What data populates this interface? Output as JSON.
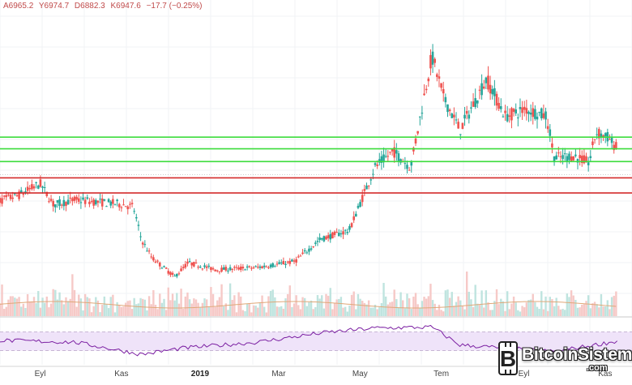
{
  "ohlc": {
    "open": "A6965.2",
    "high": "Y6974.7",
    "low": "D6882.3",
    "close": "K6947.6",
    "change": "−17.7 (−0.25%)"
  },
  "colors": {
    "up": "#26a69a",
    "down": "#ef5350",
    "support": "#3ddc3d",
    "resistance": "#d42b2b",
    "rsi_line": "#7b1fa2",
    "rsi_band": "#efe3f9",
    "volume_ma": "#e0a878"
  },
  "watermark": {
    "brand": "BitcoinSistemi",
    "tld": ".com",
    "icon": "bitcoin-b-icon"
  },
  "chart_data": {
    "type": "candlestick",
    "title": "",
    "x_ticks": [
      "Eyl",
      "Kas",
      "2019",
      "Mar",
      "May",
      "Tem",
      "Eyl",
      "Kas"
    ],
    "x_range": [
      "2018-08",
      "2019-11"
    ],
    "y_range": [
      3000,
      14500
    ],
    "horizontal_lines": {
      "green": [
        9300,
        8800,
        8250
      ],
      "red": [
        7550,
        6900
      ]
    },
    "price_path": [
      {
        "date": "2018-08-01",
        "price": 6500
      },
      {
        "date": "2018-08-20",
        "price": 6800
      },
      {
        "date": "2018-09-05",
        "price": 7300
      },
      {
        "date": "2018-09-15",
        "price": 6400
      },
      {
        "date": "2018-10-01",
        "price": 6600
      },
      {
        "date": "2018-10-20",
        "price": 6500
      },
      {
        "date": "2018-11-01",
        "price": 6450
      },
      {
        "date": "2018-11-14",
        "price": 6300
      },
      {
        "date": "2018-11-20",
        "price": 4900
      },
      {
        "date": "2018-11-28",
        "price": 4100
      },
      {
        "date": "2018-12-15",
        "price": 3300
      },
      {
        "date": "2018-12-25",
        "price": 3900
      },
      {
        "date": "2019-01-15",
        "price": 3600
      },
      {
        "date": "2019-02-15",
        "price": 3700
      },
      {
        "date": "2019-03-15",
        "price": 3950
      },
      {
        "date": "2019-04-03",
        "price": 4900
      },
      {
        "date": "2019-04-25",
        "price": 5300
      },
      {
        "date": "2019-05-14",
        "price": 8000
      },
      {
        "date": "2019-05-28",
        "price": 8700
      },
      {
        "date": "2019-06-10",
        "price": 8000
      },
      {
        "date": "2019-06-26",
        "price": 12800
      },
      {
        "date": "2019-07-05",
        "price": 11000
      },
      {
        "date": "2019-07-17",
        "price": 9600
      },
      {
        "date": "2019-08-06",
        "price": 11800
      },
      {
        "date": "2019-08-20",
        "price": 10200
      },
      {
        "date": "2019-09-05",
        "price": 10500
      },
      {
        "date": "2019-09-20",
        "price": 10200
      },
      {
        "date": "2019-09-26",
        "price": 8400
      },
      {
        "date": "2019-10-10",
        "price": 8500
      },
      {
        "date": "2019-10-22",
        "price": 8200
      },
      {
        "date": "2019-10-27",
        "price": 9500
      },
      {
        "date": "2019-11-05",
        "price": 9300
      },
      {
        "date": "2019-11-12",
        "price": 8800
      }
    ],
    "rsi": {
      "upper_band": 70,
      "lower_band": 30,
      "range": [
        0,
        100
      ],
      "path": [
        {
          "date": "2018-08-01",
          "value": 52
        },
        {
          "date": "2018-10-01",
          "value": 48
        },
        {
          "date": "2018-11-20",
          "value": 22
        },
        {
          "date": "2018-12-20",
          "value": 35
        },
        {
          "date": "2019-02-15",
          "value": 48
        },
        {
          "date": "2019-04-05",
          "value": 68
        },
        {
          "date": "2019-05-14",
          "value": 78
        },
        {
          "date": "2019-06-26",
          "value": 80
        },
        {
          "date": "2019-07-17",
          "value": 42
        },
        {
          "date": "2019-09-26",
          "value": 28
        },
        {
          "date": "2019-11-12",
          "value": 50
        }
      ]
    },
    "volume_ma": "overlay",
    "grid": true
  }
}
